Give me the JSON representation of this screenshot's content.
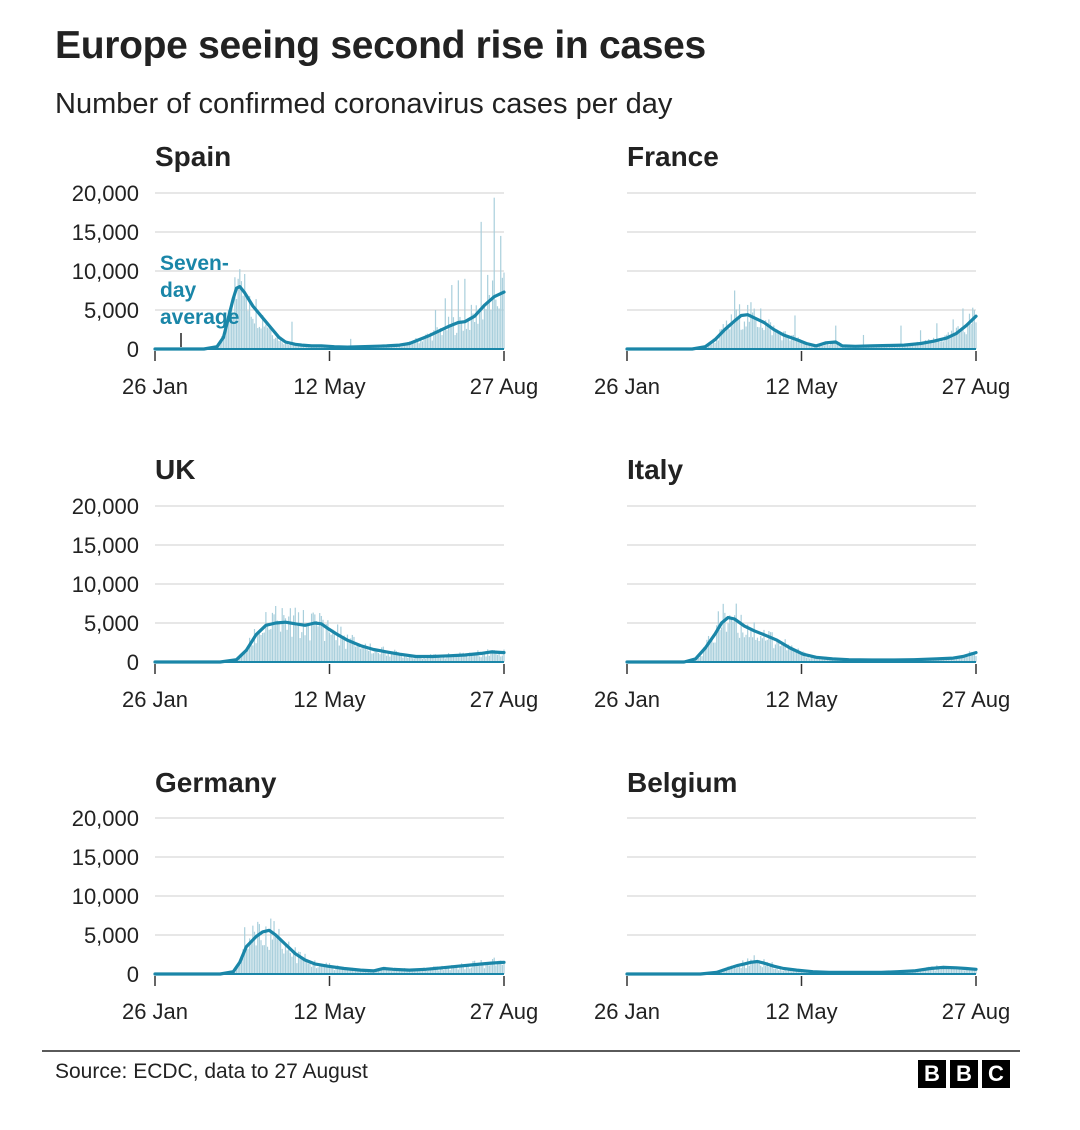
{
  "title": "Europe seeing second rise in cases",
  "subtitle": "Number of confirmed coronavirus cases per day",
  "footer": {
    "source": "Source: ECDC, data to 27 August",
    "logo_letters": [
      "B",
      "B",
      "C"
    ]
  },
  "colors": {
    "line": "#1a86a8",
    "bars": "#a9cfdc",
    "grid": "#cfcfcf",
    "axis": "#222222",
    "annotation": "#1a86a8"
  },
  "annotation": {
    "chart": "Spain",
    "lines": [
      "Seven-",
      "day",
      "average"
    ]
  },
  "chart_data": [
    {
      "type": "bar+line",
      "title": "Spain",
      "x_ticks": [
        "26 Jan",
        "12 May",
        "27 Aug"
      ],
      "x_range_days": [
        0,
        214
      ],
      "y_ticks": [
        0,
        5000,
        10000,
        15000,
        20000
      ],
      "y_tick_labels": [
        "0",
        "5,000",
        "10,000",
        "15,000",
        "20,000"
      ],
      "ylim": [
        0,
        20000
      ],
      "seven_day_average": [
        [
          0,
          0
        ],
        [
          30,
          0
        ],
        [
          38,
          300
        ],
        [
          42,
          1500
        ],
        [
          45,
          4000
        ],
        [
          48,
          6500
        ],
        [
          50,
          7800
        ],
        [
          52,
          8000
        ],
        [
          55,
          7200
        ],
        [
          60,
          5500
        ],
        [
          66,
          4000
        ],
        [
          72,
          2500
        ],
        [
          76,
          1500
        ],
        [
          80,
          900
        ],
        [
          86,
          600
        ],
        [
          90,
          500
        ],
        [
          96,
          400
        ],
        [
          102,
          400
        ],
        [
          110,
          300
        ],
        [
          118,
          250
        ],
        [
          126,
          300
        ],
        [
          134,
          350
        ],
        [
          142,
          400
        ],
        [
          150,
          500
        ],
        [
          156,
          700
        ],
        [
          162,
          1200
        ],
        [
          168,
          1700
        ],
        [
          174,
          2300
        ],
        [
          180,
          2900
        ],
        [
          186,
          3400
        ],
        [
          190,
          3500
        ],
        [
          196,
          4200
        ],
        [
          202,
          5600
        ],
        [
          208,
          6700
        ],
        [
          214,
          7300
        ]
      ],
      "daily_spikes": [
        [
          49,
          9200
        ],
        [
          51,
          9000
        ],
        [
          53,
          8700
        ],
        [
          58,
          6800
        ],
        [
          84,
          3500
        ],
        [
          120,
          1300
        ],
        [
          172,
          5000
        ],
        [
          178,
          6500
        ],
        [
          182,
          8200
        ],
        [
          186,
          8800
        ],
        [
          190,
          9000
        ],
        [
          200,
          16300
        ],
        [
          204,
          9500
        ],
        [
          208,
          19400
        ],
        [
          212,
          14500
        ],
        [
          214,
          9800
        ]
      ]
    },
    {
      "type": "bar+line",
      "title": "France",
      "x_ticks": [
        "26 Jan",
        "12 May",
        "27 Aug"
      ],
      "x_range_days": [
        0,
        214
      ],
      "y_ticks": [
        0,
        5000,
        10000,
        15000,
        20000
      ],
      "ylim": [
        0,
        20000
      ],
      "seven_day_average": [
        [
          0,
          0
        ],
        [
          40,
          0
        ],
        [
          48,
          300
        ],
        [
          54,
          1200
        ],
        [
          60,
          2500
        ],
        [
          66,
          3600
        ],
        [
          70,
          4300
        ],
        [
          74,
          4400
        ],
        [
          78,
          4000
        ],
        [
          84,
          3400
        ],
        [
          90,
          2500
        ],
        [
          96,
          1800
        ],
        [
          104,
          1200
        ],
        [
          110,
          700
        ],
        [
          116,
          400
        ],
        [
          122,
          800
        ],
        [
          128,
          900
        ],
        [
          132,
          400
        ],
        [
          140,
          350
        ],
        [
          150,
          400
        ],
        [
          160,
          450
        ],
        [
          170,
          500
        ],
        [
          180,
          700
        ],
        [
          188,
          1000
        ],
        [
          196,
          1400
        ],
        [
          202,
          2000
        ],
        [
          208,
          3000
        ],
        [
          214,
          4200
        ]
      ],
      "daily_spikes": [
        [
          66,
          7500
        ],
        [
          76,
          6000
        ],
        [
          82,
          5200
        ],
        [
          103,
          4300
        ],
        [
          128,
          3000
        ],
        [
          145,
          1800
        ],
        [
          168,
          3000
        ],
        [
          180,
          2400
        ],
        [
          190,
          3300
        ],
        [
          200,
          3800
        ],
        [
          206,
          5200
        ],
        [
          212,
          5300
        ]
      ]
    },
    {
      "type": "bar+line",
      "title": "UK",
      "x_ticks": [
        "26 Jan",
        "12 May",
        "27 Aug"
      ],
      "x_range_days": [
        0,
        214
      ],
      "y_ticks": [
        0,
        5000,
        10000,
        15000,
        20000
      ],
      "y_tick_labels": [
        "0",
        "5,000",
        "10,000",
        "15,000",
        "20,000"
      ],
      "ylim": [
        0,
        20000
      ],
      "seven_day_average": [
        [
          0,
          0
        ],
        [
          40,
          0
        ],
        [
          50,
          300
        ],
        [
          56,
          1500
        ],
        [
          62,
          3500
        ],
        [
          68,
          4700
        ],
        [
          74,
          5000
        ],
        [
          80,
          5100
        ],
        [
          86,
          4900
        ],
        [
          92,
          4700
        ],
        [
          98,
          5000
        ],
        [
          102,
          4900
        ],
        [
          106,
          4300
        ],
        [
          112,
          3500
        ],
        [
          118,
          2800
        ],
        [
          126,
          2100
        ],
        [
          134,
          1600
        ],
        [
          142,
          1300
        ],
        [
          150,
          1000
        ],
        [
          160,
          700
        ],
        [
          170,
          700
        ],
        [
          180,
          800
        ],
        [
          190,
          900
        ],
        [
          200,
          1100
        ],
        [
          206,
          1300
        ],
        [
          214,
          1200
        ]
      ],
      "daily_spikes": [
        [
          68,
          6400
        ],
        [
          72,
          6300
        ],
        [
          80,
          5600
        ],
        [
          96,
          6200
        ],
        [
          98,
          6100
        ],
        [
          102,
          5900
        ],
        [
          110,
          4000
        ]
      ]
    },
    {
      "type": "bar+line",
      "title": "Italy",
      "x_ticks": [
        "26 Jan",
        "12 May",
        "27 Aug"
      ],
      "x_range_days": [
        0,
        214
      ],
      "y_ticks": [
        0,
        5000,
        10000,
        15000,
        20000
      ],
      "ylim": [
        0,
        20000
      ],
      "seven_day_average": [
        [
          0,
          0
        ],
        [
          35,
          0
        ],
        [
          42,
          400
        ],
        [
          48,
          1800
        ],
        [
          54,
          3600
        ],
        [
          58,
          5000
        ],
        [
          62,
          5700
        ],
        [
          66,
          5500
        ],
        [
          72,
          4600
        ],
        [
          78,
          4000
        ],
        [
          84,
          3500
        ],
        [
          92,
          2800
        ],
        [
          100,
          1800
        ],
        [
          108,
          1000
        ],
        [
          116,
          600
        ],
        [
          126,
          400
        ],
        [
          136,
          300
        ],
        [
          150,
          250
        ],
        [
          164,
          250
        ],
        [
          176,
          300
        ],
        [
          190,
          400
        ],
        [
          200,
          500
        ],
        [
          206,
          700
        ],
        [
          214,
          1200
        ]
      ],
      "daily_spikes": [
        [
          56,
          6500
        ],
        [
          60,
          6300
        ],
        [
          66,
          6000
        ],
        [
          74,
          4800
        ]
      ]
    },
    {
      "type": "bar+line",
      "title": "Germany",
      "x_ticks": [
        "26 Jan",
        "12 May",
        "27 Aug"
      ],
      "x_range_days": [
        0,
        214
      ],
      "y_ticks": [
        0,
        5000,
        10000,
        15000,
        20000
      ],
      "y_tick_labels": [
        "0",
        "5,000",
        "10,000",
        "15,000",
        "20,000"
      ],
      "ylim": [
        0,
        20000
      ],
      "seven_day_average": [
        [
          0,
          0
        ],
        [
          40,
          0
        ],
        [
          48,
          300
        ],
        [
          52,
          1500
        ],
        [
          56,
          3500
        ],
        [
          62,
          4800
        ],
        [
          66,
          5400
        ],
        [
          70,
          5600
        ],
        [
          74,
          5000
        ],
        [
          80,
          3800
        ],
        [
          86,
          2600
        ],
        [
          92,
          1800
        ],
        [
          98,
          1300
        ],
        [
          106,
          1000
        ],
        [
          116,
          700
        ],
        [
          126,
          500
        ],
        [
          134,
          400
        ],
        [
          140,
          700
        ],
        [
          146,
          600
        ],
        [
          156,
          500
        ],
        [
          166,
          600
        ],
        [
          176,
          800
        ],
        [
          186,
          1000
        ],
        [
          196,
          1200
        ],
        [
          206,
          1400
        ],
        [
          214,
          1500
        ]
      ],
      "daily_spikes": [
        [
          55,
          6000
        ],
        [
          60,
          6200
        ],
        [
          64,
          6400
        ],
        [
          68,
          6100
        ],
        [
          74,
          4800
        ],
        [
          80,
          3600
        ],
        [
          208,
          2100
        ]
      ]
    },
    {
      "type": "bar+line",
      "title": "Belgium",
      "x_ticks": [
        "26 Jan",
        "12 May",
        "27 Aug"
      ],
      "x_range_days": [
        0,
        214
      ],
      "y_ticks": [
        0,
        5000,
        10000,
        15000,
        20000
      ],
      "ylim": [
        0,
        20000
      ],
      "seven_day_average": [
        [
          0,
          0
        ],
        [
          45,
          0
        ],
        [
          55,
          200
        ],
        [
          62,
          700
        ],
        [
          68,
          1100
        ],
        [
          72,
          1300
        ],
        [
          76,
          1500
        ],
        [
          80,
          1600
        ],
        [
          84,
          1400
        ],
        [
          90,
          1000
        ],
        [
          96,
          700
        ],
        [
          104,
          500
        ],
        [
          114,
          300
        ],
        [
          124,
          200
        ],
        [
          140,
          200
        ],
        [
          156,
          200
        ],
        [
          166,
          300
        ],
        [
          176,
          400
        ],
        [
          186,
          700
        ],
        [
          194,
          850
        ],
        [
          202,
          800
        ],
        [
          208,
          700
        ],
        [
          214,
          600
        ]
      ],
      "daily_spikes": [
        [
          74,
          2000
        ],
        [
          78,
          2400
        ],
        [
          84,
          1900
        ]
      ]
    }
  ]
}
